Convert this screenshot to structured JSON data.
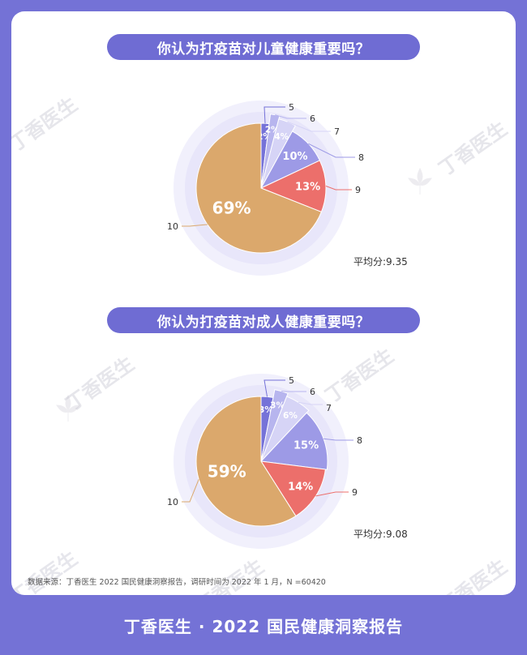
{
  "watermark": "丁香医生",
  "footer": "丁香医生 · 2022 国民健康洞察报告",
  "source": "数据来源：丁香医生 2022 国民健康洞察报告，调研时间为 2022 年 1 月，N =60420",
  "colors": {
    "frame": "#7472d6",
    "pill": "#6f6cd3",
    "s5": "#7572d8",
    "s6": "#b7b5ee",
    "s7": "#d6d4f6",
    "s8": "#9d9ae6",
    "s9": "#ec6f6b",
    "s10": "#dba86c",
    "halo": "#f1f0fc"
  },
  "chart_data": [
    {
      "type": "pie",
      "title": "你认为打疫苗对儿童健康重要吗？",
      "categories": [
        "5",
        "6",
        "7",
        "8",
        "9",
        "10"
      ],
      "values": [
        2,
        2,
        4,
        10,
        13,
        69
      ],
      "labels": [
        "2%",
        "2%",
        "4%",
        "10%",
        "13%",
        "69%"
      ],
      "note": "平均分:9.35"
    },
    {
      "type": "pie",
      "title": "你认为打疫苗对成人健康重要吗？",
      "categories": [
        "5",
        "6",
        "7",
        "8",
        "9",
        "10"
      ],
      "values": [
        3,
        3,
        6,
        15,
        14,
        59
      ],
      "labels": [
        "3%",
        "3%",
        "6%",
        "15%",
        "14%",
        "59%"
      ],
      "note": "平均分:9.08"
    }
  ]
}
